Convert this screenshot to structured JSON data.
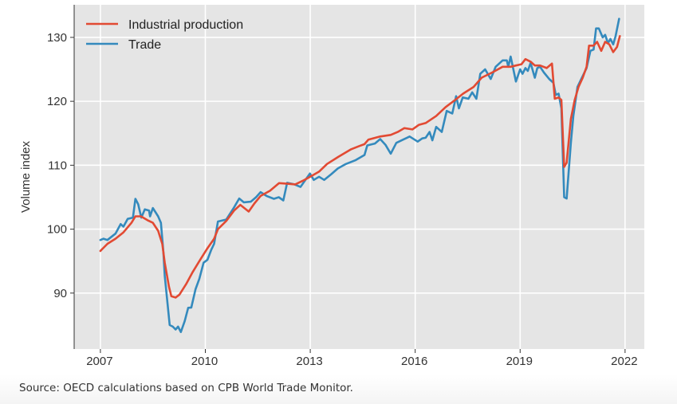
{
  "chart_data": {
    "type": "line",
    "title": "",
    "xlabel": "",
    "ylabel": "Volume index",
    "xlim": [
      2006.25,
      2022.55
    ],
    "ylim": [
      81.25,
      135.1
    ],
    "xticks": [
      2007,
      2010,
      2013,
      2016,
      2019,
      2022
    ],
    "xtick_labels": [
      "2007",
      "2010",
      "2013",
      "2016",
      "2019",
      "2022"
    ],
    "yticks": [
      90,
      100,
      110,
      120,
      130
    ],
    "ytick_labels": [
      "90",
      "100",
      "110",
      "120",
      "130"
    ],
    "grid": true,
    "legend_position": "top-left",
    "series": [
      {
        "name": "Industrial production",
        "color": "#E24A33",
        "points": [
          [
            2007.0,
            96.6
          ],
          [
            2007.2,
            97.7
          ],
          [
            2007.43,
            98.5
          ],
          [
            2007.66,
            99.5
          ],
          [
            2007.89,
            101.0
          ],
          [
            2008.0,
            102.0
          ],
          [
            2008.16,
            102.0
          ],
          [
            2008.35,
            101.4
          ],
          [
            2008.5,
            101.0
          ],
          [
            2008.65,
            99.75
          ],
          [
            2008.77,
            97.7
          ],
          [
            2008.84,
            94.75
          ],
          [
            2008.96,
            91.0
          ],
          [
            2009.03,
            89.5
          ],
          [
            2009.15,
            89.3
          ],
          [
            2009.26,
            89.75
          ],
          [
            2009.45,
            91.4
          ],
          [
            2009.64,
            93.3
          ],
          [
            2009.83,
            95.0
          ],
          [
            2010.06,
            97.0
          ],
          [
            2010.25,
            98.5
          ],
          [
            2010.36,
            100.0
          ],
          [
            2010.6,
            101.3
          ],
          [
            2010.82,
            102.9
          ],
          [
            2011.0,
            103.8
          ],
          [
            2011.24,
            102.75
          ],
          [
            2011.4,
            104.0
          ],
          [
            2011.58,
            105.2
          ],
          [
            2011.85,
            106.0
          ],
          [
            2012.11,
            107.2
          ],
          [
            2012.35,
            107.1
          ],
          [
            2012.57,
            107.0
          ],
          [
            2012.8,
            107.6
          ],
          [
            2013.03,
            108.3
          ],
          [
            2013.25,
            109.0
          ],
          [
            2013.48,
            110.2
          ],
          [
            2013.8,
            111.3
          ],
          [
            2014.17,
            112.5
          ],
          [
            2014.4,
            113.0
          ],
          [
            2014.55,
            113.3
          ],
          [
            2014.66,
            114.0
          ],
          [
            2015.0,
            114.5
          ],
          [
            2015.3,
            114.75
          ],
          [
            2015.5,
            115.2
          ],
          [
            2015.69,
            115.8
          ],
          [
            2015.92,
            115.6
          ],
          [
            2016.1,
            116.3
          ],
          [
            2016.3,
            116.6
          ],
          [
            2016.6,
            117.7
          ],
          [
            2016.87,
            119.1
          ],
          [
            2017.14,
            120.2
          ],
          [
            2017.37,
            121.2
          ],
          [
            2017.67,
            122.25
          ],
          [
            2017.9,
            123.7
          ],
          [
            2018.2,
            124.5
          ],
          [
            2018.5,
            125.4
          ],
          [
            2018.73,
            125.4
          ],
          [
            2018.88,
            125.6
          ],
          [
            2019.04,
            125.8
          ],
          [
            2019.15,
            126.6
          ],
          [
            2019.3,
            126.2
          ],
          [
            2019.42,
            125.6
          ],
          [
            2019.57,
            125.6
          ],
          [
            2019.76,
            125.2
          ],
          [
            2019.91,
            125.9
          ],
          [
            2019.99,
            120.4
          ],
          [
            2020.1,
            120.6
          ],
          [
            2020.18,
            120.2
          ],
          [
            2020.26,
            109.75
          ],
          [
            2020.33,
            110.4
          ],
          [
            2020.45,
            117.25
          ],
          [
            2020.56,
            120.2
          ],
          [
            2020.67,
            122.25
          ],
          [
            2020.79,
            123.7
          ],
          [
            2020.9,
            125.4
          ],
          [
            2020.97,
            128.7
          ],
          [
            2021.1,
            128.7
          ],
          [
            2021.2,
            129.3
          ],
          [
            2021.32,
            127.9
          ],
          [
            2021.43,
            129.3
          ],
          [
            2021.55,
            128.9
          ],
          [
            2021.66,
            127.7
          ],
          [
            2021.77,
            128.5
          ],
          [
            2021.85,
            130.2
          ]
        ]
      },
      {
        "name": "Trade",
        "color": "#348ABD",
        "points": [
          [
            2007.0,
            98.3
          ],
          [
            2007.09,
            98.5
          ],
          [
            2007.2,
            98.3
          ],
          [
            2007.43,
            99.3
          ],
          [
            2007.58,
            100.8
          ],
          [
            2007.66,
            100.4
          ],
          [
            2007.78,
            101.6
          ],
          [
            2007.93,
            101.8
          ],
          [
            2008.0,
            104.75
          ],
          [
            2008.08,
            103.9
          ],
          [
            2008.17,
            101.8
          ],
          [
            2008.27,
            103.1
          ],
          [
            2008.39,
            102.9
          ],
          [
            2008.42,
            102.0
          ],
          [
            2008.5,
            103.3
          ],
          [
            2008.65,
            102.0
          ],
          [
            2008.73,
            101.0
          ],
          [
            2008.8,
            96.4
          ],
          [
            2008.84,
            92.7
          ],
          [
            2008.98,
            85.0
          ],
          [
            2009.07,
            84.75
          ],
          [
            2009.15,
            84.3
          ],
          [
            2009.22,
            84.75
          ],
          [
            2009.3,
            83.9
          ],
          [
            2009.41,
            85.6
          ],
          [
            2009.51,
            87.7
          ],
          [
            2009.6,
            87.75
          ],
          [
            2009.72,
            90.6
          ],
          [
            2009.83,
            92.25
          ],
          [
            2009.95,
            94.75
          ],
          [
            2010.06,
            95.2
          ],
          [
            2010.17,
            96.8
          ],
          [
            2010.25,
            97.7
          ],
          [
            2010.36,
            101.2
          ],
          [
            2010.6,
            101.5
          ],
          [
            2010.82,
            103.4
          ],
          [
            2010.97,
            104.8
          ],
          [
            2011.1,
            104.2
          ],
          [
            2011.3,
            104.3
          ],
          [
            2011.45,
            105.0
          ],
          [
            2011.58,
            105.8
          ],
          [
            2011.75,
            105.2
          ],
          [
            2011.96,
            104.75
          ],
          [
            2012.1,
            105.0
          ],
          [
            2012.23,
            104.5
          ],
          [
            2012.34,
            107.25
          ],
          [
            2012.55,
            107.0
          ],
          [
            2012.72,
            106.6
          ],
          [
            2012.99,
            108.7
          ],
          [
            2013.1,
            107.7
          ],
          [
            2013.25,
            108.2
          ],
          [
            2013.4,
            107.7
          ],
          [
            2013.6,
            108.6
          ],
          [
            2013.79,
            109.5
          ],
          [
            2014.02,
            110.2
          ],
          [
            2014.3,
            110.8
          ],
          [
            2014.55,
            111.6
          ],
          [
            2014.63,
            113.1
          ],
          [
            2014.85,
            113.4
          ],
          [
            2015.0,
            114.1
          ],
          [
            2015.15,
            113.2
          ],
          [
            2015.3,
            111.8
          ],
          [
            2015.46,
            113.5
          ],
          [
            2015.65,
            114.0
          ],
          [
            2015.84,
            114.5
          ],
          [
            2016.07,
            113.7
          ],
          [
            2016.2,
            114.2
          ],
          [
            2016.3,
            114.3
          ],
          [
            2016.41,
            115.2
          ],
          [
            2016.49,
            113.9
          ],
          [
            2016.6,
            116.0
          ],
          [
            2016.76,
            115.2
          ],
          [
            2016.9,
            118.5
          ],
          [
            2017.06,
            118.1
          ],
          [
            2017.17,
            120.8
          ],
          [
            2017.25,
            118.9
          ],
          [
            2017.36,
            120.6
          ],
          [
            2017.52,
            120.4
          ],
          [
            2017.63,
            121.4
          ],
          [
            2017.75,
            120.4
          ],
          [
            2017.86,
            124.3
          ],
          [
            2018.0,
            125.0
          ],
          [
            2018.16,
            123.5
          ],
          [
            2018.3,
            125.4
          ],
          [
            2018.5,
            126.4
          ],
          [
            2018.62,
            126.4
          ],
          [
            2018.66,
            125.4
          ],
          [
            2018.73,
            127.0
          ],
          [
            2018.88,
            123.1
          ],
          [
            2019.0,
            125.0
          ],
          [
            2019.07,
            124.3
          ],
          [
            2019.15,
            125.2
          ],
          [
            2019.22,
            124.75
          ],
          [
            2019.3,
            126.0
          ],
          [
            2019.42,
            123.7
          ],
          [
            2019.49,
            125.2
          ],
          [
            2019.57,
            125.4
          ],
          [
            2019.68,
            124.5
          ],
          [
            2019.83,
            123.5
          ],
          [
            2019.95,
            122.9
          ],
          [
            2020.02,
            121.0
          ],
          [
            2020.1,
            121.2
          ],
          [
            2020.18,
            118.9
          ],
          [
            2020.26,
            105.0
          ],
          [
            2020.33,
            104.8
          ],
          [
            2020.45,
            113.5
          ],
          [
            2020.52,
            117.7
          ],
          [
            2020.64,
            122.25
          ],
          [
            2020.75,
            123.5
          ],
          [
            2020.9,
            125.2
          ],
          [
            2021.01,
            127.9
          ],
          [
            2021.1,
            128.1
          ],
          [
            2021.17,
            131.4
          ],
          [
            2021.25,
            131.4
          ],
          [
            2021.36,
            130.0
          ],
          [
            2021.43,
            130.4
          ],
          [
            2021.51,
            129.1
          ],
          [
            2021.58,
            129.75
          ],
          [
            2021.66,
            128.9
          ],
          [
            2021.73,
            130.2
          ],
          [
            2021.83,
            132.9
          ]
        ]
      }
    ]
  },
  "footer": {
    "source": "Source: OECD calculations based on CPB World Trade Monitor."
  }
}
